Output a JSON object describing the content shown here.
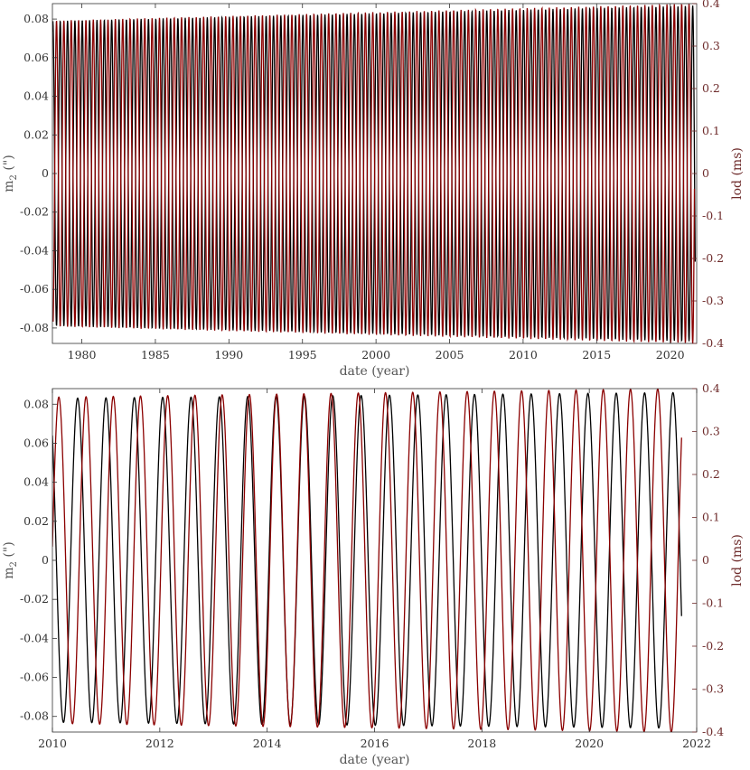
{
  "colors": {
    "m2_series": "#000000",
    "lod_series": "#8b0000",
    "axis": "#333333",
    "right_axis": "#6e2b2b"
  },
  "chart_data": [
    {
      "type": "line",
      "panel": "top",
      "xlabel": "date (year)",
      "ylabel_left": "m",
      "ylabel_left_sub": "2",
      "ylabel_left_unit": " (\")",
      "ylabel_right": "lod (ms)",
      "xlim": [
        1978,
        2021.8
      ],
      "ylim_left": [
        -0.088,
        0.088
      ],
      "ylim_right": [
        -0.4,
        0.4
      ],
      "x_ticks": [
        1980,
        1985,
        1990,
        1995,
        2000,
        2005,
        2010,
        2015,
        2020
      ],
      "x_tick_labels": [
        "1980",
        "1985",
        "1990",
        "1995",
        "2000",
        "2005",
        "2010",
        "2015",
        "2020"
      ],
      "y_left_ticks": [
        -0.08,
        -0.06,
        -0.04,
        -0.02,
        0,
        0.02,
        0.04,
        0.06,
        0.08
      ],
      "y_left_tick_labels": [
        "-0.08",
        "-0.06",
        "-0.04",
        "-0.02",
        "0",
        "0.02",
        "0.04",
        "0.06",
        "0.08"
      ],
      "y_right_ticks": [
        -0.4,
        -0.3,
        -0.2,
        -0.1,
        0,
        0.1,
        0.2,
        0.3,
        0.4
      ],
      "y_right_tick_labels": [
        "-0.4",
        "-0.3",
        "-0.2",
        "-0.1",
        "0",
        "0.1",
        "0.2",
        "0.3",
        "0.4"
      ],
      "grid": false,
      "series": [
        {
          "key": "m2",
          "axis": "left",
          "period_years": 0.5,
          "phase_year": 1978.03,
          "amplitude_start": 0.079,
          "amplitude_end": 0.087,
          "x_range": [
            1978,
            2021.7
          ]
        },
        {
          "key": "lod",
          "axis": "right",
          "period_years": 0.5,
          "phase_year": 1978.28,
          "amplitude_start": 0.36,
          "amplitude_end": 0.4,
          "x_range": [
            1978.05,
            2021.65
          ]
        }
      ]
    },
    {
      "type": "line",
      "panel": "bottom",
      "xlabel": "date (year)",
      "ylabel_left": "m",
      "ylabel_left_sub": "2",
      "ylabel_left_unit": " (\")",
      "ylabel_right": "lod (ms)",
      "xlim": [
        2010,
        2022
      ],
      "ylim_left": [
        -0.088,
        0.088
      ],
      "ylim_right": [
        -0.4,
        0.4
      ],
      "x_ticks": [
        2010,
        2012,
        2014,
        2016,
        2018,
        2020,
        2022
      ],
      "x_tick_labels": [
        "2010",
        "2012",
        "2014",
        "2016",
        "2018",
        "2020",
        "2022"
      ],
      "y_left_ticks": [
        -0.08,
        -0.06,
        -0.04,
        -0.02,
        0,
        0.02,
        0.04,
        0.06,
        0.08
      ],
      "y_left_tick_labels": [
        "-0.08",
        "-0.06",
        "-0.04",
        "-0.02",
        "0",
        "0.02",
        "0.04",
        "0.06",
        "0.08"
      ],
      "y_right_ticks": [
        -0.4,
        -0.3,
        -0.2,
        -0.1,
        0,
        0.1,
        0.2,
        0.3,
        0.4
      ],
      "y_right_tick_labels": [
        "-0.4",
        "-0.3",
        "-0.2",
        "-0.1",
        "0",
        "0.1",
        "0.2",
        "0.3",
        "0.4"
      ],
      "grid": false,
      "series": [
        {
          "key": "m2",
          "axis": "left",
          "period_years": 0.528,
          "phase_year": 2010.47,
          "amplitude_start": 0.083,
          "amplitude_end": 0.086,
          "x_range": [
            2010,
            2021.72
          ]
        },
        {
          "key": "lod",
          "axis": "right",
          "period_years": 0.507,
          "phase_year": 2010.12,
          "amplitude_start": 0.38,
          "amplitude_end": 0.4,
          "x_range": [
            2010,
            2021.72
          ]
        }
      ]
    }
  ]
}
